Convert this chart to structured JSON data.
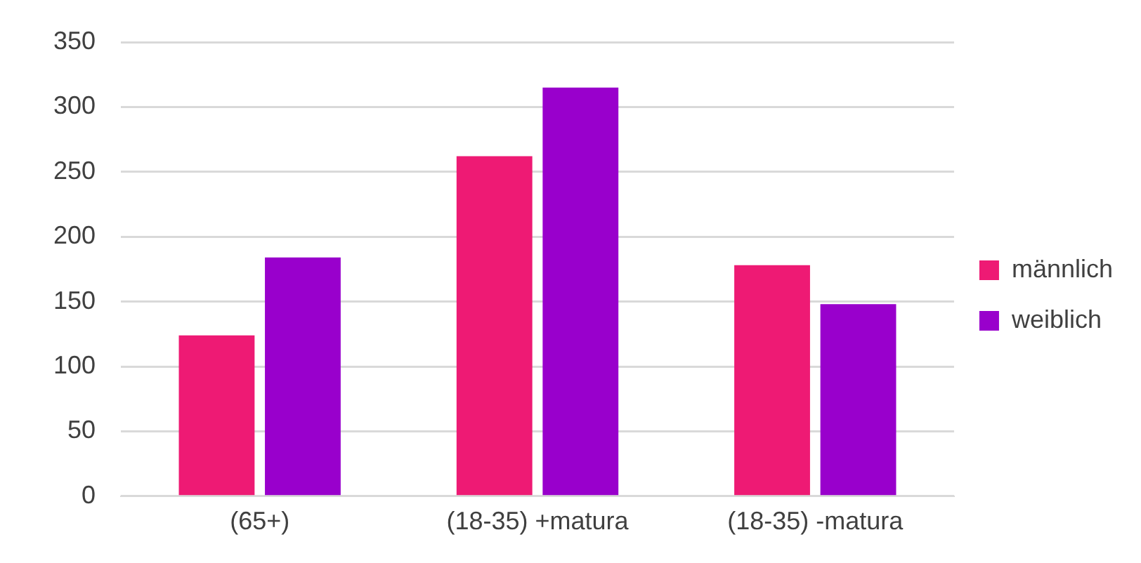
{
  "chart_data": {
    "type": "bar",
    "categories": [
      "(65+)",
      "(18-35) +matura",
      "(18-35) -matura"
    ],
    "series": [
      {
        "name": "männlich",
        "color": "#ee1a74",
        "values": [
          124,
          262,
          178
        ]
      },
      {
        "name": "weiblich",
        "color": "#9900cc",
        "values": [
          184,
          315,
          148
        ]
      }
    ],
    "ylim": [
      0,
      350
    ],
    "yticks": [
      0,
      50,
      100,
      150,
      200,
      250,
      300,
      350
    ],
    "grid": "y",
    "legend": "right"
  }
}
